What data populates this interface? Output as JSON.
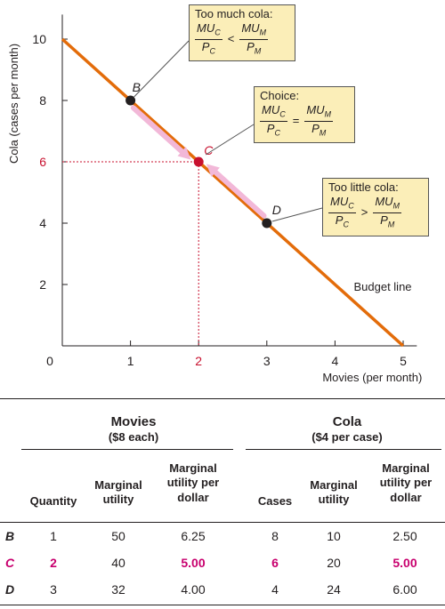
{
  "chart_data": {
    "type": "line",
    "xlabel": "Movies (per month)",
    "ylabel": "Cola (cases per month)",
    "xlim": [
      0,
      5.2
    ],
    "ylim": [
      0,
      10.8
    ],
    "x_ticks": [
      0,
      1,
      2,
      3,
      4,
      5
    ],
    "y_ticks": [
      2,
      4,
      6,
      8,
      10
    ],
    "highlight_tick": {
      "x": 2,
      "y": 6
    },
    "series": [
      {
        "name": "Budget line",
        "x": [
          0,
          5
        ],
        "y": [
          10,
          0
        ]
      }
    ],
    "points": [
      {
        "label": "B",
        "x": 1,
        "y": 8
      },
      {
        "label": "C",
        "x": 2,
        "y": 6
      },
      {
        "label": "D",
        "x": 3,
        "y": 4
      }
    ],
    "callouts": [
      {
        "title": "Too much cola:",
        "lhs_num": "MU",
        "lhs_num_sub": "C",
        "lhs_den": "P",
        "lhs_den_sub": "C",
        "op": "<",
        "rhs_num": "MU",
        "rhs_num_sub": "M",
        "rhs_den": "P",
        "rhs_den_sub": "M"
      },
      {
        "title": "Choice:",
        "lhs_num": "MU",
        "lhs_num_sub": "C",
        "lhs_den": "P",
        "lhs_den_sub": "C",
        "op": "=",
        "rhs_num": "MU",
        "rhs_num_sub": "M",
        "rhs_den": "P",
        "rhs_den_sub": "M"
      },
      {
        "title": "Too little cola:",
        "lhs_num": "MU",
        "lhs_num_sub": "C",
        "lhs_den": "P",
        "lhs_den_sub": "C",
        "op": ">",
        "rhs_num": "MU",
        "rhs_num_sub": "M",
        "rhs_den": "P",
        "rhs_den_sub": "M"
      }
    ],
    "colors": {
      "line": "#e36c0a",
      "arrow": "#f2b8d8",
      "point": "#231f20",
      "choice": "#c8102e",
      "callout_bg": "#fbeeb8"
    }
  },
  "table": {
    "movies_title": "Movies",
    "movies_sub": "($8 each)",
    "cola_title": "Cola",
    "cola_sub": "($4 per case)",
    "col_quantity": "Quantity",
    "col_mu_movies": "Marginal utility",
    "col_mupd_movies": "Marginal utility per dollar",
    "col_cases": "Cases",
    "col_mu_cola": "Marginal utility",
    "col_mupd_cola": "Marginal utility per dollar",
    "rows": [
      {
        "label": "B",
        "quantity": "1",
        "mu_movies": "50",
        "mupd_movies": "6.25",
        "cases": "8",
        "mu_cola": "10",
        "mupd_cola": "2.50"
      },
      {
        "label": "C",
        "quantity": "2",
        "mu_movies": "40",
        "mupd_movies": "5.00",
        "cases": "6",
        "mu_cola": "20",
        "mupd_cola": "5.00"
      },
      {
        "label": "D",
        "quantity": "3",
        "mu_movies": "32",
        "mupd_movies": "4.00",
        "cases": "4",
        "mu_cola": "24",
        "mupd_cola": "6.00"
      }
    ]
  }
}
